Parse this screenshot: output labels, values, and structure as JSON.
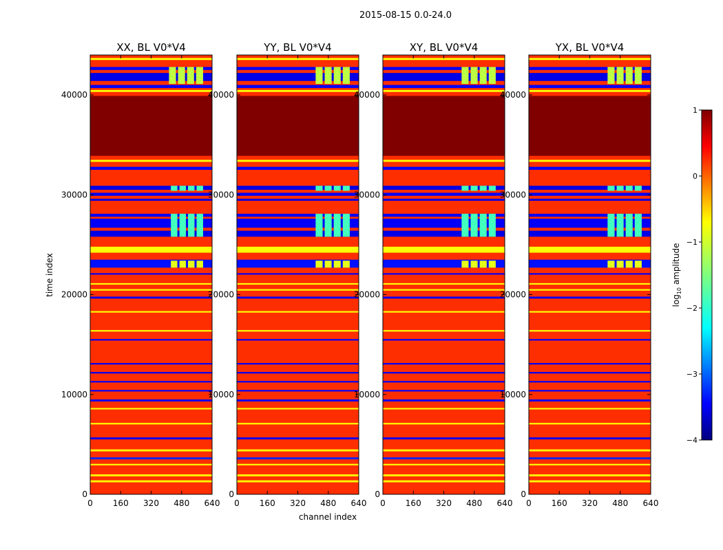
{
  "suptitle": "2015-08-15 0.0-24.0",
  "shared_xlabel": "channel index",
  "shared_ylabel": "time index",
  "colorbar": {
    "label": "log10 amplitude",
    "label_base": "log",
    "label_sub": "10",
    "label_rest": " amplitude",
    "ticks": [
      1,
      0,
      -1,
      -2,
      -3,
      -4
    ],
    "tick_labels": [
      "1",
      "0",
      "−1",
      "−2",
      "−3",
      "−4"
    ],
    "range": [
      -4,
      1
    ],
    "colormap": "jet"
  },
  "chart_data": [
    {
      "type": "heatmap",
      "title": "XX, BL V0*V4",
      "x_ticks": [
        0,
        160,
        320,
        480,
        640
      ],
      "x_tick_labels": [
        "0",
        "160",
        "320",
        "480",
        "640"
      ],
      "y_ticks": [
        0,
        10000,
        20000,
        30000,
        40000
      ],
      "y_tick_labels": [
        "0",
        "10000",
        "20000",
        "30000",
        "40000"
      ],
      "xlim": [
        0,
        640
      ],
      "ylim": [
        0,
        44000
      ],
      "background_log10": 0.15,
      "bands": [
        {
          "y0": 0,
          "y1": 1200,
          "v": 0.15
        },
        {
          "y0": 1200,
          "y1": 1400,
          "v": -0.9
        },
        {
          "y0": 1800,
          "y1": 2000,
          "v": -0.9
        },
        {
          "y0": 2900,
          "y1": 3050,
          "v": -0.9
        },
        {
          "y0": 3500,
          "y1": 3700,
          "v": -3.2
        },
        {
          "y0": 4300,
          "y1": 4500,
          "v": -0.9
        },
        {
          "y0": 5500,
          "y1": 5700,
          "v": -3.4
        },
        {
          "y0": 7000,
          "y1": 7150,
          "v": -0.9
        },
        {
          "y0": 8500,
          "y1": 8650,
          "v": -0.9
        },
        {
          "y0": 9300,
          "y1": 9500,
          "v": -3.4
        },
        {
          "y0": 10300,
          "y1": 10450,
          "v": -3.4
        },
        {
          "y0": 11200,
          "y1": 11350,
          "v": -3.4
        },
        {
          "y0": 12100,
          "y1": 12250,
          "v": -3.4
        },
        {
          "y0": 13000,
          "y1": 13150,
          "v": -3.4
        },
        {
          "y0": 15400,
          "y1": 15550,
          "v": -3.4
        },
        {
          "y0": 16300,
          "y1": 16450,
          "v": -0.9
        },
        {
          "y0": 18200,
          "y1": 18350,
          "v": -0.9
        },
        {
          "y0": 19600,
          "y1": 19800,
          "v": -3.4
        },
        {
          "y0": 20400,
          "y1": 20550,
          "v": -0.9
        },
        {
          "y0": 21000,
          "y1": 21150,
          "v": -0.9
        },
        {
          "y0": 22000,
          "y1": 22150,
          "v": -3.4
        },
        {
          "y0": 22700,
          "y1": 23500,
          "v": -3.3
        },
        {
          "y0": 24200,
          "y1": 24800,
          "v": -0.9
        },
        {
          "y0": 25800,
          "y1": 26400,
          "v": -3.5
        },
        {
          "y0": 26700,
          "y1": 27600,
          "v": -3.4
        },
        {
          "y0": 27800,
          "y1": 28100,
          "v": -3.4
        },
        {
          "y0": 29400,
          "y1": 29600,
          "v": -3.5
        },
        {
          "y0": 29900,
          "y1": 30200,
          "v": -3.4
        },
        {
          "y0": 30500,
          "y1": 30900,
          "v": -3.5
        },
        {
          "y0": 32500,
          "y1": 32800,
          "v": -3.4
        },
        {
          "y0": 33300,
          "y1": 33500,
          "v": -0.9
        },
        {
          "y0": 33900,
          "y1": 39900,
          "v": 1.0
        },
        {
          "y0": 40300,
          "y1": 40500,
          "v": -0.9
        },
        {
          "y0": 40700,
          "y1": 41000,
          "v": -3.4
        },
        {
          "y0": 41400,
          "y1": 42200,
          "v": -3.5
        },
        {
          "y0": 42500,
          "y1": 42800,
          "v": -3.4
        },
        {
          "y0": 43500,
          "y1": 43700,
          "v": -0.9
        }
      ],
      "patches": [
        {
          "x0": 420,
          "x1": 600,
          "y0": 25800,
          "y1": 28100,
          "v": -1.8
        },
        {
          "x0": 420,
          "x1": 600,
          "y0": 30400,
          "y1": 30900,
          "v": -1.8
        },
        {
          "x0": 420,
          "x1": 600,
          "y0": 22700,
          "y1": 23400,
          "v": -1.0
        },
        {
          "x0": 410,
          "x1": 600,
          "y0": 41100,
          "y1": 42800,
          "v": -1.2
        }
      ]
    },
    {
      "type": "heatmap",
      "title": "YY, BL V0*V4",
      "x_ticks": [
        0,
        160,
        320,
        480,
        640
      ],
      "x_tick_labels": [
        "0",
        "160",
        "320",
        "480",
        "640"
      ],
      "y_ticks": [
        0,
        10000,
        20000,
        30000,
        40000
      ],
      "y_tick_labels": [
        "0",
        "10000",
        "20000",
        "30000",
        "40000"
      ],
      "xlim": [
        0,
        640
      ],
      "ylim": [
        0,
        44000
      ],
      "background_log10": 0.15,
      "bands": [
        {
          "y0": 0,
          "y1": 1200,
          "v": 0.15
        },
        {
          "y0": 1200,
          "y1": 1400,
          "v": -0.9
        },
        {
          "y0": 1800,
          "y1": 2000,
          "v": -0.9
        },
        {
          "y0": 2900,
          "y1": 3050,
          "v": -0.9
        },
        {
          "y0": 3500,
          "y1": 3700,
          "v": -3.2
        },
        {
          "y0": 4300,
          "y1": 4500,
          "v": -0.9
        },
        {
          "y0": 5500,
          "y1": 5700,
          "v": -3.4
        },
        {
          "y0": 7000,
          "y1": 7150,
          "v": -0.9
        },
        {
          "y0": 8500,
          "y1": 8650,
          "v": -0.9
        },
        {
          "y0": 9300,
          "y1": 9500,
          "v": -3.4
        },
        {
          "y0": 10300,
          "y1": 10450,
          "v": -3.4
        },
        {
          "y0": 11200,
          "y1": 11350,
          "v": -3.4
        },
        {
          "y0": 12100,
          "y1": 12250,
          "v": -3.4
        },
        {
          "y0": 13000,
          "y1": 13150,
          "v": -3.4
        },
        {
          "y0": 15400,
          "y1": 15550,
          "v": -3.4
        },
        {
          "y0": 16300,
          "y1": 16450,
          "v": -0.9
        },
        {
          "y0": 18200,
          "y1": 18350,
          "v": -0.9
        },
        {
          "y0": 19600,
          "y1": 19800,
          "v": -3.4
        },
        {
          "y0": 20400,
          "y1": 20550,
          "v": -0.9
        },
        {
          "y0": 21000,
          "y1": 21150,
          "v": -0.9
        },
        {
          "y0": 22000,
          "y1": 22150,
          "v": -3.4
        },
        {
          "y0": 22700,
          "y1": 23500,
          "v": -3.3
        },
        {
          "y0": 24200,
          "y1": 24800,
          "v": -0.9
        },
        {
          "y0": 25800,
          "y1": 26400,
          "v": -3.5
        },
        {
          "y0": 26700,
          "y1": 27600,
          "v": -3.4
        },
        {
          "y0": 27800,
          "y1": 28100,
          "v": -3.4
        },
        {
          "y0": 29400,
          "y1": 29600,
          "v": -3.5
        },
        {
          "y0": 29900,
          "y1": 30200,
          "v": -3.4
        },
        {
          "y0": 30500,
          "y1": 30900,
          "v": -3.5
        },
        {
          "y0": 32500,
          "y1": 32800,
          "v": -3.4
        },
        {
          "y0": 33300,
          "y1": 33500,
          "v": -0.9
        },
        {
          "y0": 33900,
          "y1": 39900,
          "v": 1.0
        },
        {
          "y0": 40300,
          "y1": 40500,
          "v": -0.9
        },
        {
          "y0": 40700,
          "y1": 41000,
          "v": -3.4
        },
        {
          "y0": 41400,
          "y1": 42200,
          "v": -3.5
        },
        {
          "y0": 42500,
          "y1": 42800,
          "v": -3.4
        },
        {
          "y0": 43500,
          "y1": 43700,
          "v": -0.9
        }
      ],
      "patches": [
        {
          "x0": 410,
          "x1": 600,
          "y0": 25800,
          "y1": 28100,
          "v": -1.8
        },
        {
          "x0": 410,
          "x1": 600,
          "y0": 30400,
          "y1": 30900,
          "v": -1.8
        },
        {
          "x0": 410,
          "x1": 600,
          "y0": 22700,
          "y1": 23400,
          "v": -1.0
        },
        {
          "x0": 410,
          "x1": 600,
          "y0": 41100,
          "y1": 42800,
          "v": -1.2
        }
      ]
    },
    {
      "type": "heatmap",
      "title": "XY, BL V0*V4",
      "x_ticks": [
        0,
        160,
        320,
        480,
        640
      ],
      "x_tick_labels": [
        "0",
        "160",
        "320",
        "480",
        "640"
      ],
      "y_ticks": [
        0,
        10000,
        20000,
        30000,
        40000
      ],
      "y_tick_labels": [
        "0",
        "10000",
        "20000",
        "30000",
        "40000"
      ],
      "xlim": [
        0,
        640
      ],
      "ylim": [
        0,
        44000
      ],
      "background_log10": 0.15,
      "bands": [
        {
          "y0": 0,
          "y1": 1200,
          "v": 0.15
        },
        {
          "y0": 1200,
          "y1": 1400,
          "v": -0.9
        },
        {
          "y0": 1800,
          "y1": 2000,
          "v": -0.9
        },
        {
          "y0": 2900,
          "y1": 3050,
          "v": -0.9
        },
        {
          "y0": 3500,
          "y1": 3700,
          "v": -3.2
        },
        {
          "y0": 4300,
          "y1": 4500,
          "v": -0.9
        },
        {
          "y0": 5500,
          "y1": 5700,
          "v": -3.4
        },
        {
          "y0": 7000,
          "y1": 7150,
          "v": -0.9
        },
        {
          "y0": 8500,
          "y1": 8650,
          "v": -0.9
        },
        {
          "y0": 9300,
          "y1": 9500,
          "v": -3.4
        },
        {
          "y0": 10300,
          "y1": 10450,
          "v": -3.4
        },
        {
          "y0": 11200,
          "y1": 11350,
          "v": -3.4
        },
        {
          "y0": 12100,
          "y1": 12250,
          "v": -3.4
        },
        {
          "y0": 13000,
          "y1": 13150,
          "v": -3.4
        },
        {
          "y0": 15400,
          "y1": 15550,
          "v": -3.4
        },
        {
          "y0": 16300,
          "y1": 16450,
          "v": -0.9
        },
        {
          "y0": 18200,
          "y1": 18350,
          "v": -0.9
        },
        {
          "y0": 19600,
          "y1": 19800,
          "v": -3.4
        },
        {
          "y0": 20400,
          "y1": 20550,
          "v": -0.9
        },
        {
          "y0": 21000,
          "y1": 21150,
          "v": -0.9
        },
        {
          "y0": 22000,
          "y1": 22150,
          "v": -3.4
        },
        {
          "y0": 22700,
          "y1": 23500,
          "v": -3.3
        },
        {
          "y0": 24200,
          "y1": 24800,
          "v": -0.9
        },
        {
          "y0": 25800,
          "y1": 26400,
          "v": -3.5
        },
        {
          "y0": 26700,
          "y1": 27600,
          "v": -3.4
        },
        {
          "y0": 27800,
          "y1": 28100,
          "v": -3.4
        },
        {
          "y0": 29400,
          "y1": 29600,
          "v": -3.5
        },
        {
          "y0": 29900,
          "y1": 30200,
          "v": -3.4
        },
        {
          "y0": 30500,
          "y1": 30900,
          "v": -3.5
        },
        {
          "y0": 32500,
          "y1": 32800,
          "v": -3.4
        },
        {
          "y0": 33300,
          "y1": 33500,
          "v": -0.9
        },
        {
          "y0": 33900,
          "y1": 39900,
          "v": 1.0
        },
        {
          "y0": 40300,
          "y1": 40500,
          "v": -0.9
        },
        {
          "y0": 40700,
          "y1": 41000,
          "v": -3.4
        },
        {
          "y0": 41400,
          "y1": 42200,
          "v": -3.5
        },
        {
          "y0": 42500,
          "y1": 42800,
          "v": -3.4
        },
        {
          "y0": 43500,
          "y1": 43700,
          "v": -0.9
        }
      ],
      "patches": [
        {
          "x0": 410,
          "x1": 600,
          "y0": 25800,
          "y1": 28100,
          "v": -1.8
        },
        {
          "x0": 410,
          "x1": 600,
          "y0": 30400,
          "y1": 30900,
          "v": -1.8
        },
        {
          "x0": 410,
          "x1": 600,
          "y0": 22700,
          "y1": 23400,
          "v": -1.0
        },
        {
          "x0": 410,
          "x1": 600,
          "y0": 41100,
          "y1": 42800,
          "v": -1.2
        }
      ]
    },
    {
      "type": "heatmap",
      "title": "YX, BL V0*V4",
      "x_ticks": [
        0,
        160,
        320,
        480,
        640
      ],
      "x_tick_labels": [
        "0",
        "160",
        "320",
        "480",
        "640"
      ],
      "y_ticks": [
        0,
        10000,
        20000,
        30000,
        40000
      ],
      "y_tick_labels": [
        "0",
        "10000",
        "20000",
        "30000",
        "40000"
      ],
      "xlim": [
        0,
        640
      ],
      "ylim": [
        0,
        44000
      ],
      "background_log10": 0.15,
      "bands": [
        {
          "y0": 0,
          "y1": 1200,
          "v": 0.15
        },
        {
          "y0": 1200,
          "y1": 1400,
          "v": -0.9
        },
        {
          "y0": 1800,
          "y1": 2000,
          "v": -0.9
        },
        {
          "y0": 2900,
          "y1": 3050,
          "v": -0.9
        },
        {
          "y0": 3500,
          "y1": 3700,
          "v": -3.2
        },
        {
          "y0": 4300,
          "y1": 4500,
          "v": -0.9
        },
        {
          "y0": 5500,
          "y1": 5700,
          "v": -3.4
        },
        {
          "y0": 7000,
          "y1": 7150,
          "v": -0.9
        },
        {
          "y0": 8500,
          "y1": 8650,
          "v": -0.9
        },
        {
          "y0": 9300,
          "y1": 9500,
          "v": -3.4
        },
        {
          "y0": 10300,
          "y1": 10450,
          "v": -3.4
        },
        {
          "y0": 11200,
          "y1": 11350,
          "v": -3.4
        },
        {
          "y0": 12100,
          "y1": 12250,
          "v": -3.4
        },
        {
          "y0": 13000,
          "y1": 13150,
          "v": -3.4
        },
        {
          "y0": 15400,
          "y1": 15550,
          "v": -3.4
        },
        {
          "y0": 16300,
          "y1": 16450,
          "v": -0.9
        },
        {
          "y0": 18200,
          "y1": 18350,
          "v": -0.9
        },
        {
          "y0": 19600,
          "y1": 19800,
          "v": -3.4
        },
        {
          "y0": 20400,
          "y1": 20550,
          "v": -0.9
        },
        {
          "y0": 21000,
          "y1": 21150,
          "v": -0.9
        },
        {
          "y0": 22000,
          "y1": 22150,
          "v": -3.4
        },
        {
          "y0": 22700,
          "y1": 23500,
          "v": -3.3
        },
        {
          "y0": 24200,
          "y1": 24800,
          "v": -0.9
        },
        {
          "y0": 25800,
          "y1": 26400,
          "v": -3.5
        },
        {
          "y0": 26700,
          "y1": 27600,
          "v": -3.4
        },
        {
          "y0": 27800,
          "y1": 28100,
          "v": -3.4
        },
        {
          "y0": 29400,
          "y1": 29600,
          "v": -3.5
        },
        {
          "y0": 29900,
          "y1": 30200,
          "v": -3.4
        },
        {
          "y0": 30500,
          "y1": 30900,
          "v": -3.5
        },
        {
          "y0": 32500,
          "y1": 32800,
          "v": -3.4
        },
        {
          "y0": 33300,
          "y1": 33500,
          "v": -0.9
        },
        {
          "y0": 33900,
          "y1": 39900,
          "v": 1.0
        },
        {
          "y0": 40300,
          "y1": 40500,
          "v": -0.9
        },
        {
          "y0": 40700,
          "y1": 41000,
          "v": -3.4
        },
        {
          "y0": 41400,
          "y1": 42200,
          "v": -3.5
        },
        {
          "y0": 42500,
          "y1": 42800,
          "v": -3.4
        },
        {
          "y0": 43500,
          "y1": 43700,
          "v": -0.9
        }
      ],
      "patches": [
        {
          "x0": 410,
          "x1": 600,
          "y0": 25800,
          "y1": 28100,
          "v": -1.8
        },
        {
          "x0": 410,
          "x1": 600,
          "y0": 30400,
          "y1": 30900,
          "v": -1.8
        },
        {
          "x0": 410,
          "x1": 600,
          "y0": 22700,
          "y1": 23400,
          "v": -1.0
        },
        {
          "x0": 410,
          "x1": 600,
          "y0": 41100,
          "y1": 42800,
          "v": -1.2
        }
      ]
    }
  ]
}
